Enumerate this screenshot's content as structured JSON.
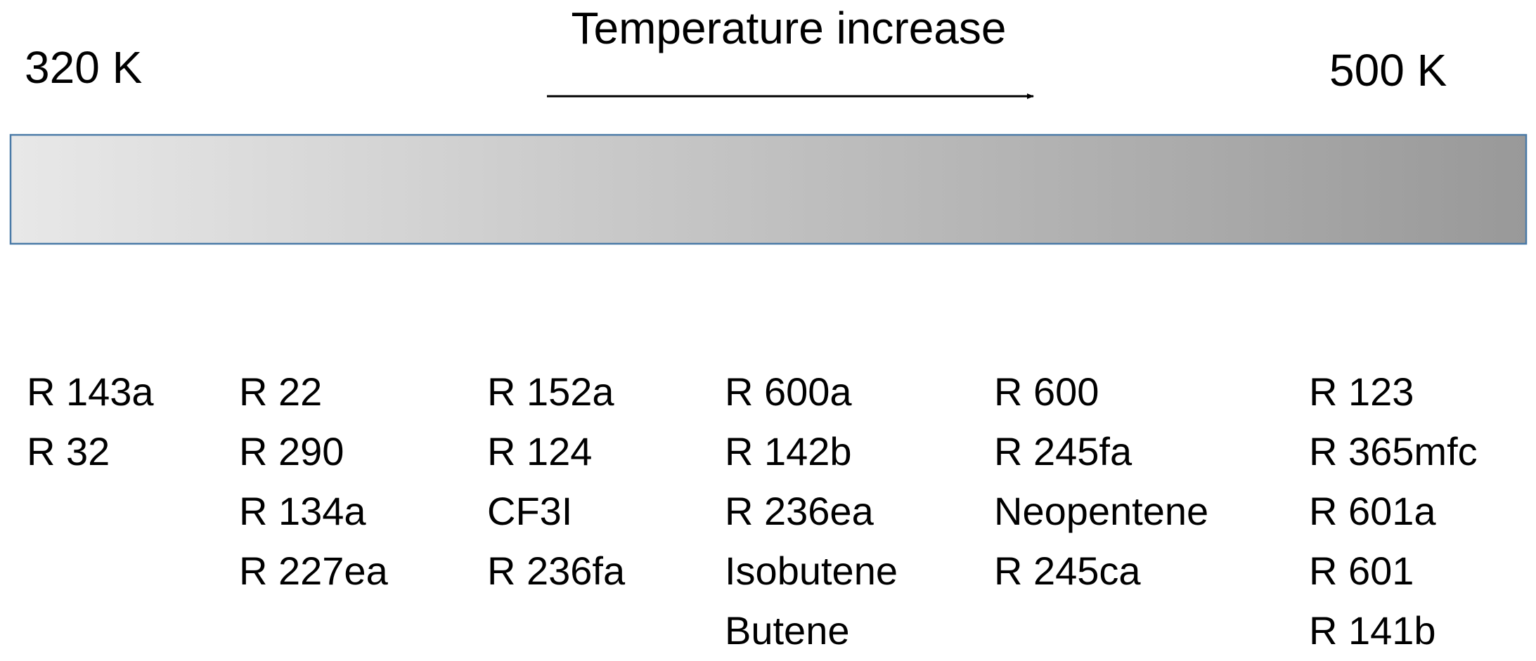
{
  "title": "Temperature increase",
  "low_label": "320 K",
  "high_label": "500 K",
  "columns": [
    {
      "items": [
        "R 143a",
        "R 32"
      ]
    },
    {
      "items": [
        "R 22",
        "R 290",
        "R 134a",
        "R 227ea"
      ]
    },
    {
      "items": [
        "R 152a",
        "R 124",
        "CF3I",
        "R 236fa"
      ]
    },
    {
      "items": [
        "R 600a",
        "R 142b",
        "R 236ea",
        "Isobutene",
        "Butene"
      ]
    },
    {
      "items": [
        "R 600",
        "R 245fa",
        "Neopentene",
        "R 245ca"
      ]
    },
    {
      "items": [
        "R 123",
        "R 365mfc",
        "R 601a",
        "R 601",
        "R 141b"
      ]
    }
  ]
}
